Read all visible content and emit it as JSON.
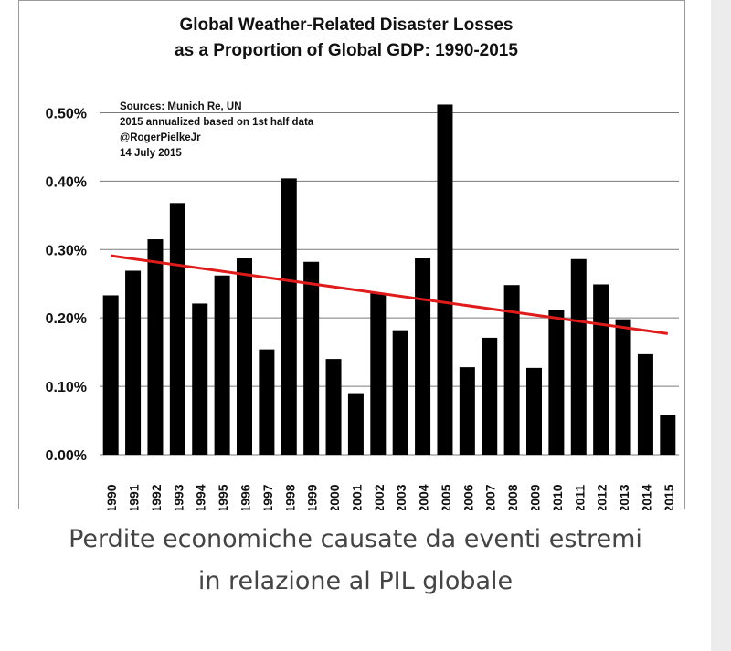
{
  "chart_data": {
    "type": "bar",
    "title": "Global Weather-Related Disaster Losses",
    "subtitle": "as a Proportion of Global GDP: 1990-2015",
    "annotation": [
      "Sources: Munich Re, UN",
      "2015 annualized based on 1st half data",
      "@RogerPielkeJr",
      "14 July 2015"
    ],
    "categories": [
      "1990",
      "1991",
      "1992",
      "1993",
      "1994",
      "1995",
      "1996",
      "1997",
      "1998",
      "1999",
      "2000",
      "2001",
      "2002",
      "2003",
      "2004",
      "2005",
      "2006",
      "2007",
      "2008",
      "2009",
      "2010",
      "2011",
      "2012",
      "2013",
      "2014",
      "2015"
    ],
    "values": [
      0.233,
      0.269,
      0.315,
      0.368,
      0.221,
      0.262,
      0.287,
      0.154,
      0.404,
      0.282,
      0.14,
      0.09,
      0.236,
      0.182,
      0.287,
      0.512,
      0.128,
      0.171,
      0.248,
      0.127,
      0.212,
      0.286,
      0.249,
      0.198,
      0.147,
      0.058
    ],
    "yticks": [
      "0.00%",
      "0.10%",
      "0.20%",
      "0.30%",
      "0.40%",
      "0.50%"
    ],
    "ylim": [
      0,
      0.55
    ],
    "trend": {
      "start": 0.291,
      "end": 0.177
    },
    "grid": true,
    "colors": {
      "bar": "#000000",
      "trend": "#e01b1b",
      "grid": "#7a7a7a"
    }
  },
  "caption": {
    "line1": "Perdite economiche causate da eventi estremi",
    "line2": "in relazione al PIL globale"
  }
}
